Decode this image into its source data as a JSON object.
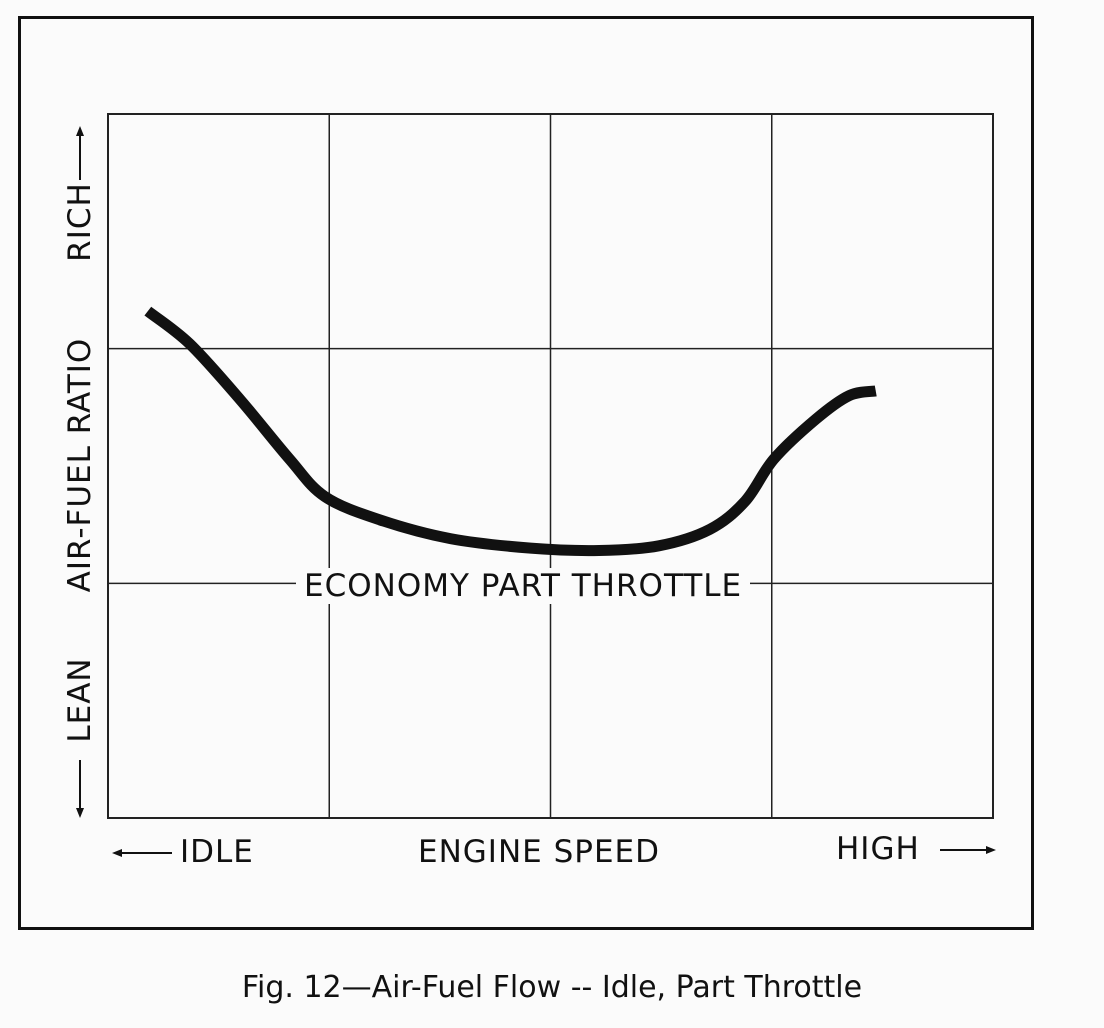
{
  "chart_data": {
    "type": "line",
    "title": "",
    "xlabel": "ENGINE SPEED",
    "x_low_label": "IDLE",
    "x_high_label": "HIGH",
    "ylabel": "AIR-FUEL RATIO",
    "y_low_label": "LEAN",
    "y_high_label": "RICH",
    "annotation": "ECONOMY PART THROTTLE",
    "xlim": [
      0,
      4
    ],
    "ylim": [
      0,
      3
    ],
    "grid": true,
    "x": [
      0.18,
      0.37,
      0.6,
      0.82,
      0.98,
      1.23,
      1.55,
      1.91,
      2.22,
      2.49,
      2.72,
      2.88,
      3.01,
      3.2,
      3.35,
      3.47
    ],
    "y": [
      2.16,
      2.02,
      1.78,
      1.53,
      1.37,
      1.27,
      1.19,
      1.15,
      1.14,
      1.16,
      1.23,
      1.35,
      1.53,
      1.7,
      1.8,
      1.82
    ],
    "line_color": "#111111"
  },
  "caption": "Fig. 12—Air-Fuel Flow -- Idle, Part Throttle"
}
